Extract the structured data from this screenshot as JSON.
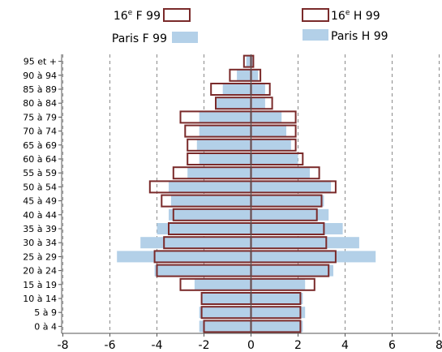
{
  "chart_data": {
    "type": "bar",
    "orientation": "horizontal",
    "subtype": "population-pyramid",
    "categories": [
      "0 à 4",
      "5 à 9",
      "10 à 14",
      "15 à 19",
      "20 à 24",
      "25 à 29",
      "30 à 34",
      "35 à 39",
      "40 à 44",
      "45 à 49",
      "50 à 54",
      "55 à 59",
      "60 à 64",
      "65 à 69",
      "70 à 74",
      "75 à 79",
      "80 à 84",
      "85 à 89",
      "90 à 94",
      "95 et +"
    ],
    "series": [
      {
        "name": "Paris F 99",
        "side": "left",
        "style": "filled",
        "color": "#b3d0e8",
        "values": [
          2.2,
          2.2,
          2.1,
          2.4,
          4.1,
          5.7,
          4.7,
          4.0,
          3.5,
          3.4,
          3.5,
          2.7,
          2.2,
          2.3,
          2.2,
          2.2,
          1.5,
          1.2,
          0.6,
          0.2
        ]
      },
      {
        "name": "16e F 99",
        "side": "left",
        "style": "outline",
        "color": "#7a2a2a",
        "values": [
          2.0,
          2.1,
          2.1,
          3.0,
          4.0,
          4.1,
          3.7,
          3.5,
          3.3,
          3.8,
          4.3,
          3.3,
          2.7,
          2.7,
          2.8,
          3.0,
          1.5,
          1.7,
          0.9,
          0.3
        ]
      },
      {
        "name": "Paris H 99",
        "side": "right",
        "style": "filled",
        "color": "#b3d0e8",
        "values": [
          2.2,
          2.3,
          2.2,
          2.3,
          3.5,
          5.3,
          4.6,
          3.9,
          3.3,
          3.1,
          3.4,
          2.5,
          2.0,
          1.7,
          1.5,
          1.3,
          0.6,
          0.6,
          0.3,
          0.1
        ]
      },
      {
        "name": "16e H 99",
        "side": "right",
        "style": "outline",
        "color": "#7a2a2a",
        "values": [
          2.1,
          2.1,
          2.1,
          2.7,
          3.3,
          3.6,
          3.2,
          3.1,
          2.8,
          3.0,
          3.6,
          2.9,
          2.2,
          1.9,
          1.9,
          1.9,
          0.9,
          0.8,
          0.4,
          0.1
        ]
      }
    ],
    "legend": [
      {
        "label_base": "16",
        "label_sup": "e",
        "label_rest": " F 99",
        "style": "outline"
      },
      {
        "label_base": "16",
        "label_sup": "e",
        "label_rest": " H 99",
        "style": "outline"
      },
      {
        "label_base": "Paris F 99",
        "label_sup": "",
        "label_rest": "",
        "style": "filled"
      },
      {
        "label_base": "Paris H 99",
        "label_sup": "",
        "label_rest": "",
        "style": "filled"
      }
    ],
    "x_ticks": [
      -8,
      -6,
      -4,
      -2,
      0,
      2,
      4,
      6,
      8
    ],
    "x_tick_labels": [
      "-8",
      "-6",
      "-4",
      "-2",
      "0",
      "2",
      "4",
      "6",
      "8"
    ],
    "xlim": [
      -8,
      8
    ],
    "grid": "vertical dashed",
    "legend_placement": "top"
  }
}
